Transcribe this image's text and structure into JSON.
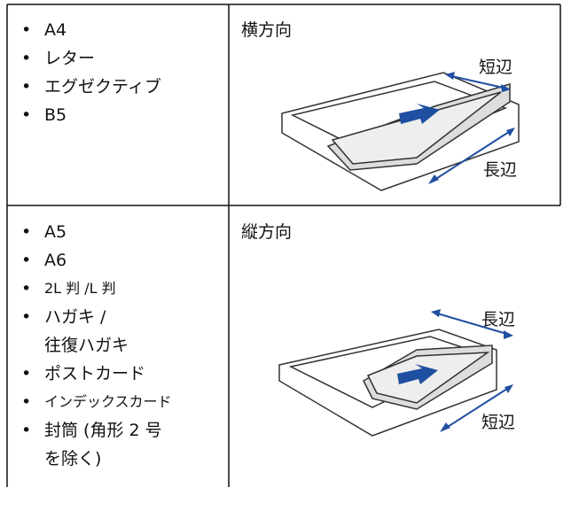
{
  "rows": [
    {
      "items": [
        [
          "A4"
        ],
        [
          "レター"
        ],
        [
          "エグゼクティブ"
        ],
        [
          "B5"
        ]
      ],
      "orientation": "横方向",
      "long_label": "長辺",
      "short_label": "短辺"
    },
    {
      "items": [
        [
          "A5"
        ],
        [
          "A6"
        ],
        [
          "2L 判 /L 判"
        ],
        [
          "ハガキ /",
          "往復ハガキ"
        ],
        [
          "ポストカード"
        ],
        [
          "インデックスカード"
        ],
        [
          "封筒 (角形 2 号",
          "を除く)"
        ]
      ],
      "orientation": "縦方向",
      "long_label": "長辺",
      "short_label": "短辺"
    }
  ]
}
